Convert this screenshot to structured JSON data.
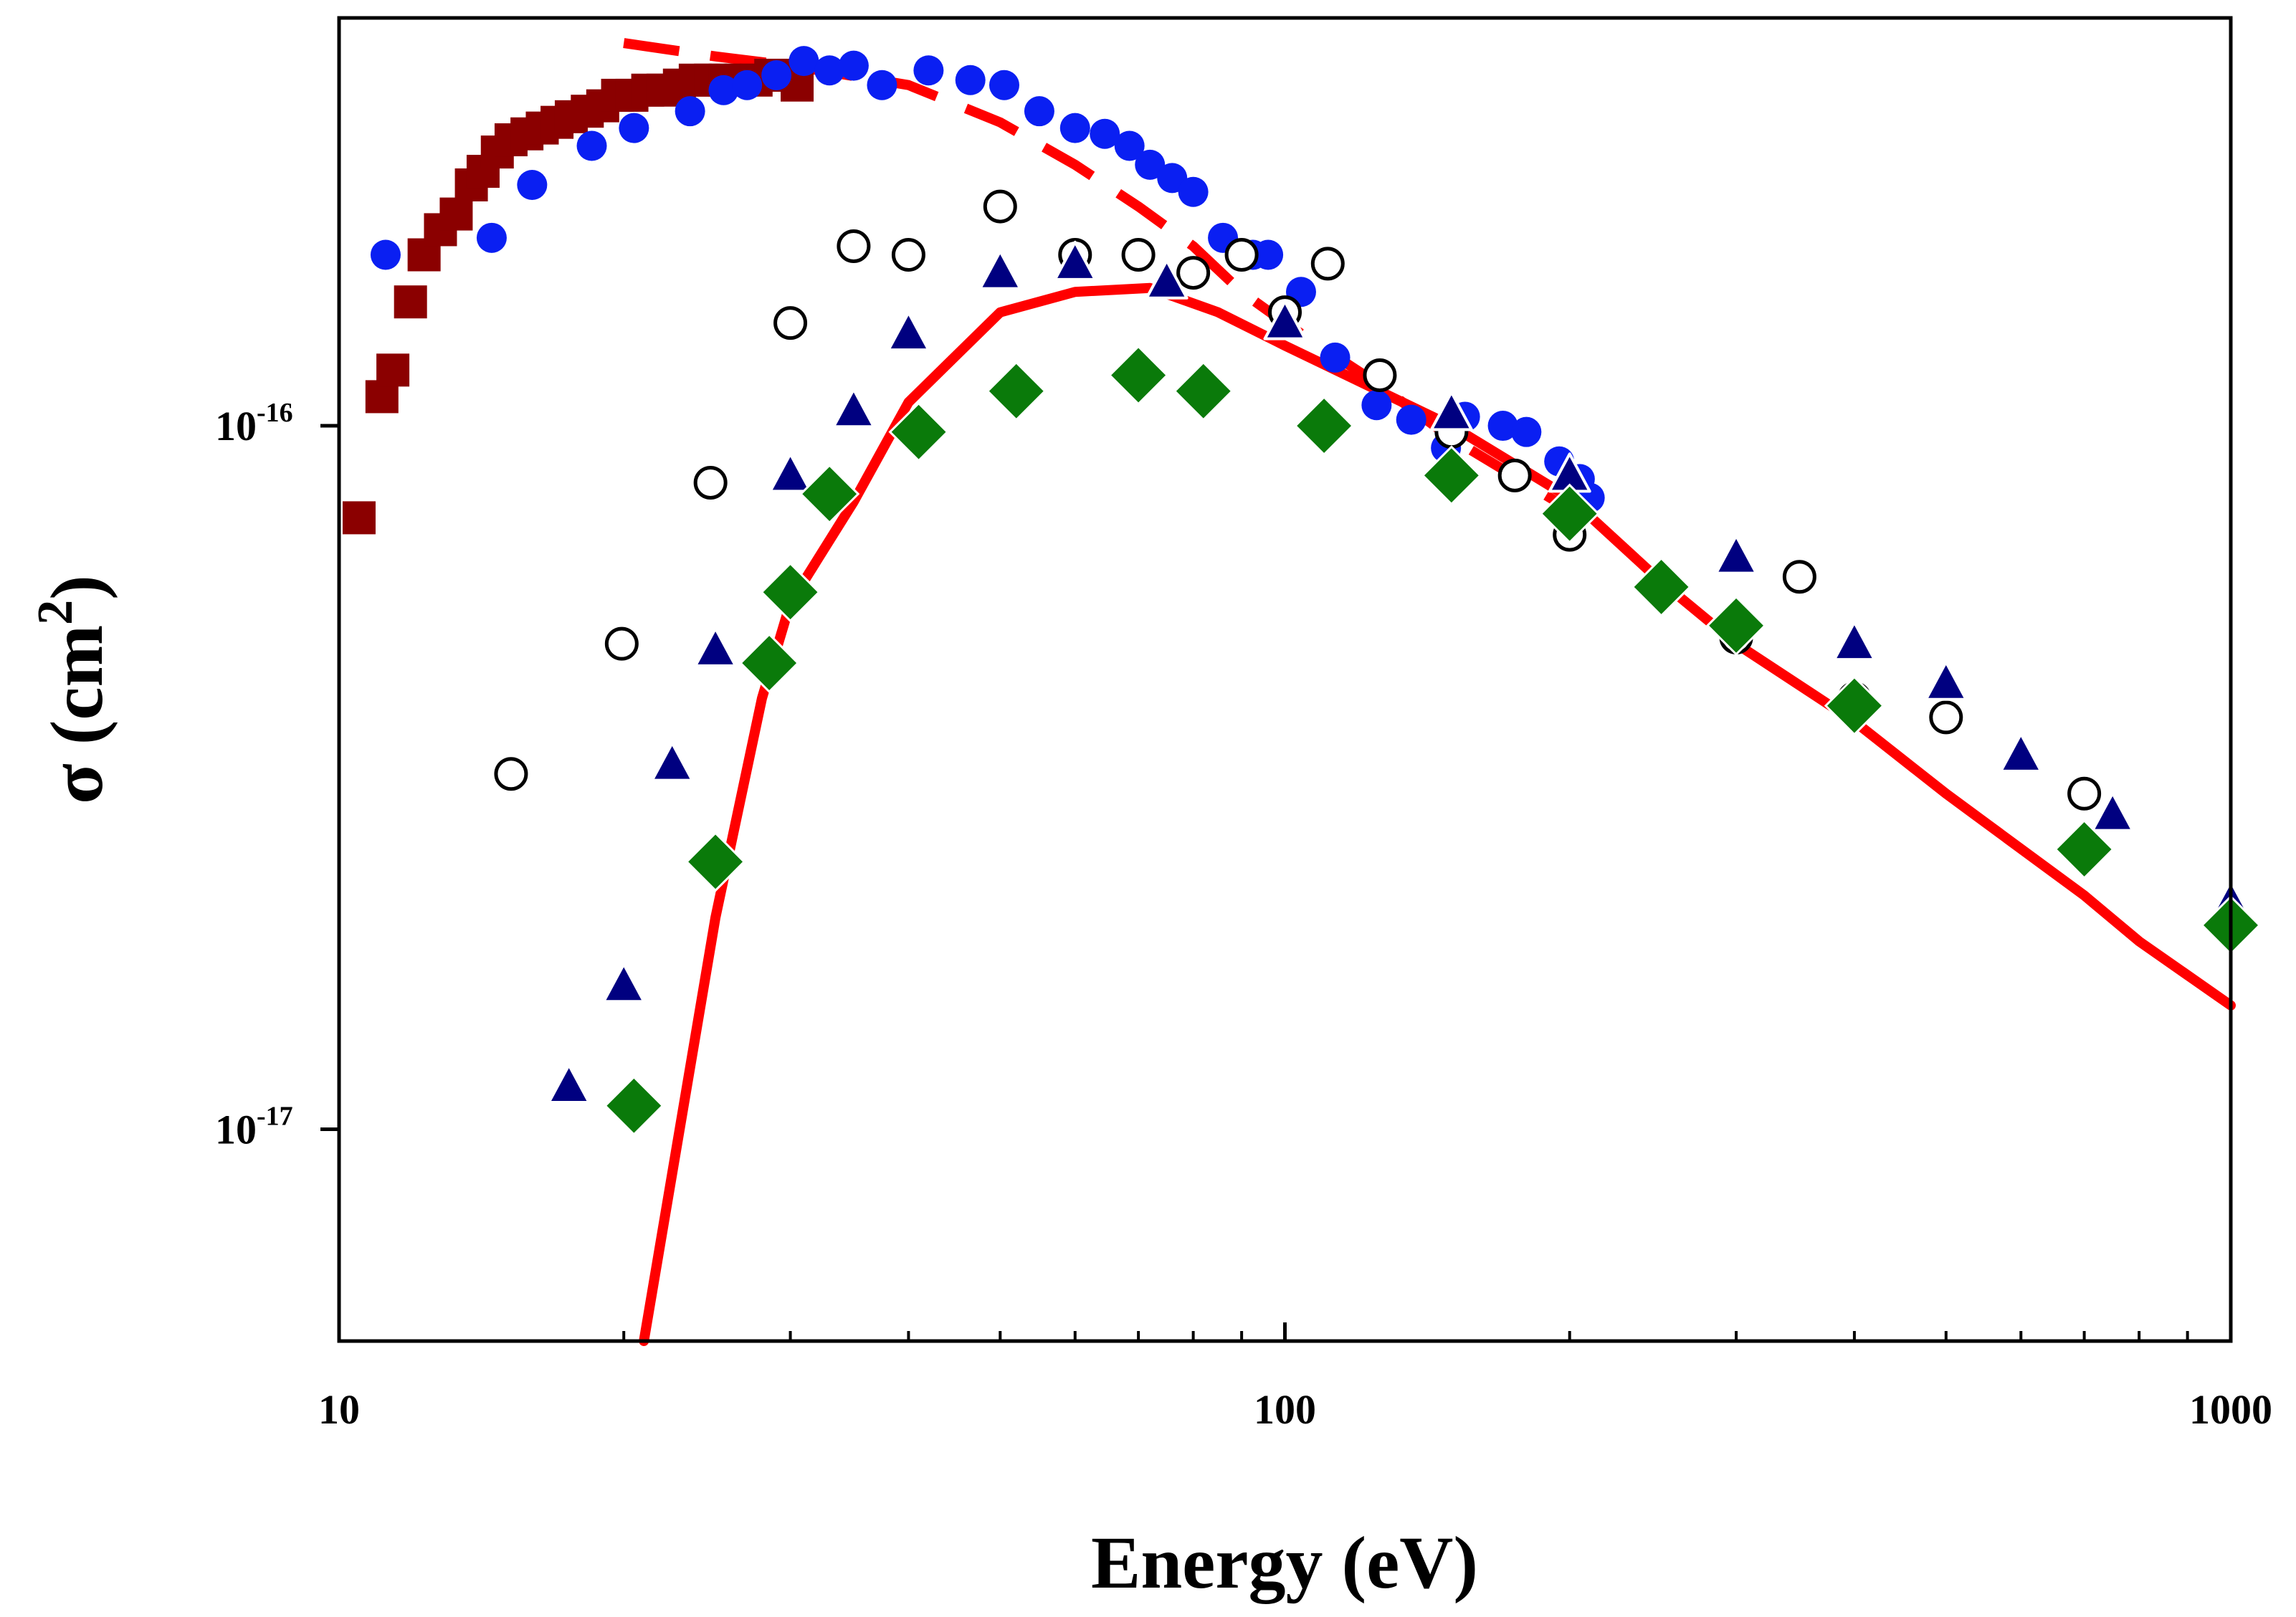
{
  "chart_data": {
    "type": "scatter",
    "title": "",
    "xlabel": "Energy (eV)",
    "ylabel": {
      "base": "σ (cm",
      "sup": "2",
      "end": ")"
    },
    "xscale": "log",
    "yscale": "log",
    "xlim": [
      10,
      1000
    ],
    "ylim": [
      5e-18,
      3.8e-16
    ],
    "grid": false,
    "legend": "none",
    "x_ticks": [
      {
        "value": 10,
        "label": "10"
      },
      {
        "value": 100,
        "label": "100"
      },
      {
        "value": 1000,
        "label": "1000"
      }
    ],
    "y_ticks": [
      {
        "value": 1e-16,
        "base": "10",
        "exp": "-16"
      },
      {
        "value": 1e-17,
        "base": "10",
        "exp": "-17"
      }
    ],
    "series": [
      {
        "marker": "square",
        "color": "#8b0000",
        "points": [
          [
            10.5,
            7.4e-17
          ],
          [
            11.1,
            1.1e-16
          ],
          [
            11.4,
            1.2e-16
          ],
          [
            11.9,
            1.5e-16
          ],
          [
            12.3,
            1.75e-16
          ],
          [
            12.8,
            1.9e-16
          ],
          [
            13.3,
            2e-16
          ],
          [
            13.8,
            2.2e-16
          ],
          [
            14.2,
            2.3e-16
          ],
          [
            14.7,
            2.45e-16
          ],
          [
            15.2,
            2.55e-16
          ],
          [
            15.8,
            2.6e-16
          ],
          [
            16.4,
            2.65e-16
          ],
          [
            17.0,
            2.7e-16
          ],
          [
            17.6,
            2.75e-16
          ],
          [
            18.3,
            2.8e-16
          ],
          [
            19.0,
            2.85e-16
          ],
          [
            19.7,
            2.95e-16
          ],
          [
            20.4,
            2.95e-16
          ],
          [
            21.2,
            3e-16
          ],
          [
            22.0,
            3e-16
          ],
          [
            22.9,
            3.05e-16
          ],
          [
            23.8,
            3.1e-16
          ],
          [
            24.7,
            3.1e-16
          ],
          [
            25.6,
            3.1e-16
          ],
          [
            26.6,
            3.1e-16
          ],
          [
            27.6,
            3.1e-16
          ],
          [
            28.6,
            3.15e-16
          ],
          [
            29.5,
            3.15e-16
          ],
          [
            30.5,
            3.05e-16
          ]
        ]
      },
      {
        "marker": "circle",
        "color": "#0a1ff2",
        "points": [
          [
            11.2,
            1.75e-16
          ],
          [
            14.5,
            1.85e-16
          ],
          [
            16.0,
            2.2e-16
          ],
          [
            18.5,
            2.5e-16
          ],
          [
            20.5,
            2.65e-16
          ],
          [
            23.5,
            2.8e-16
          ],
          [
            25.5,
            3e-16
          ],
          [
            27.0,
            3.05e-16
          ],
          [
            29.0,
            3.15e-16
          ],
          [
            31.0,
            3.3e-16
          ],
          [
            33.0,
            3.2e-16
          ],
          [
            35.0,
            3.25e-16
          ],
          [
            37.5,
            3.05e-16
          ],
          [
            42.0,
            3.2e-16
          ],
          [
            46.5,
            3.1e-16
          ],
          [
            50.5,
            3.05e-16
          ],
          [
            55.0,
            2.8e-16
          ],
          [
            60.0,
            2.65e-16
          ],
          [
            64.5,
            2.6e-16
          ],
          [
            68.5,
            2.5e-16
          ],
          [
            72.0,
            2.35e-16
          ],
          [
            76.0,
            2.25e-16
          ],
          [
            80.0,
            2.15e-16
          ],
          [
            86.0,
            1.85e-16
          ],
          [
            92.5,
            1.75e-16
          ],
          [
            96.0,
            1.75e-16
          ],
          [
            104.0,
            1.55e-16
          ],
          [
            113.0,
            1.25e-16
          ],
          [
            125.0,
            1.07e-16
          ],
          [
            136.0,
            1.02e-16
          ],
          [
            148.0,
            9.3e-17
          ],
          [
            155.0,
            1.03e-16
          ],
          [
            170.0,
            1e-16
          ],
          [
            180.0,
            9.8e-17
          ],
          [
            195.0,
            8.9e-17
          ],
          [
            205.0,
            8.4e-17
          ],
          [
            210.0,
            7.9e-17
          ]
        ]
      },
      {
        "marker": "open-circle",
        "color": "#000000",
        "points": [
          [
            15.2,
            3.2e-17
          ],
          [
            19.9,
            4.9e-17
          ],
          [
            24.7,
            8.3e-17
          ],
          [
            30.0,
            1.4e-16
          ],
          [
            35.0,
            1.8e-16
          ],
          [
            40.0,
            1.75e-16
          ],
          [
            50.0,
            2.05e-16
          ],
          [
            60.0,
            1.75e-16
          ],
          [
            70.0,
            1.75e-16
          ],
          [
            80.0,
            1.65e-16
          ],
          [
            90.0,
            1.75e-16
          ],
          [
            100.0,
            1.45e-16
          ],
          [
            111.0,
            1.7e-16
          ],
          [
            126.0,
            1.18e-16
          ],
          [
            150.0,
            9.8e-17
          ],
          [
            175.0,
            8.5e-17
          ],
          [
            200.0,
            7e-17
          ],
          [
            250.0,
            5.9e-17
          ],
          [
            300.0,
            5e-17
          ],
          [
            350.0,
            6.1e-17
          ],
          [
            400.0,
            4.1e-17
          ],
          [
            500.0,
            3.85e-17
          ],
          [
            700.0,
            3e-17
          ]
        ]
      },
      {
        "marker": "triangle",
        "color": "#000080",
        "points": [
          [
            17.5,
            1.15e-17
          ],
          [
            20.0,
            1.6e-17
          ],
          [
            22.5,
            3.3e-17
          ],
          [
            25.0,
            4.8e-17
          ],
          [
            30.0,
            8.5e-17
          ],
          [
            35.0,
            1.05e-16
          ],
          [
            40.0,
            1.35e-16
          ],
          [
            50.0,
            1.65e-16
          ],
          [
            60.0,
            1.7e-16
          ],
          [
            75.0,
            1.6e-16
          ],
          [
            100.0,
            1.4e-16
          ],
          [
            150.0,
            1.04e-16
          ],
          [
            200.0,
            8.5e-17
          ],
          [
            300.0,
            6.5e-17
          ],
          [
            400.0,
            4.9e-17
          ],
          [
            500.0,
            4.3e-17
          ],
          [
            600.0,
            3.4e-17
          ],
          [
            750.0,
            2.8e-17
          ],
          [
            1000.0,
            2.1e-17
          ]
        ]
      },
      {
        "marker": "diamond",
        "color": "#0a7a0a",
        "points": [
          [
            20.5,
            1.08e-17
          ],
          [
            25.0,
            2.4e-17
          ],
          [
            28.5,
            4.6e-17
          ],
          [
            30.0,
            5.8e-17
          ],
          [
            33.0,
            8e-17
          ],
          [
            41.0,
            9.8e-17
          ],
          [
            52.0,
            1.12e-16
          ],
          [
            70.0,
            1.18e-16
          ],
          [
            82.0,
            1.12e-16
          ],
          [
            110.0,
            1e-16
          ],
          [
            150.0,
            8.5e-17
          ],
          [
            200.0,
            7.5e-17
          ],
          [
            250.0,
            5.9e-17
          ],
          [
            300.0,
            5.2e-17
          ],
          [
            400.0,
            4e-17
          ],
          [
            700.0,
            2.5e-17
          ],
          [
            1000.0,
            1.95e-17
          ]
        ]
      },
      {
        "type": "line",
        "style": "solid",
        "color": "#ff0000",
        "points": [
          [
            21.0,
            5e-18
          ],
          [
            25.0,
            2e-17
          ],
          [
            28.0,
            4.1e-17
          ],
          [
            30.0,
            5.6e-17
          ],
          [
            35.0,
            7.8e-17
          ],
          [
            40.0,
            1.08e-16
          ],
          [
            50.0,
            1.45e-16
          ],
          [
            60.0,
            1.55e-16
          ],
          [
            72.0,
            1.57e-16
          ],
          [
            85.0,
            1.45e-16
          ],
          [
            100.0,
            1.3e-16
          ],
          [
            150.0,
            1e-16
          ],
          [
            200.0,
            7.9e-17
          ],
          [
            250.0,
            6e-17
          ],
          [
            300.0,
            4.9e-17
          ],
          [
            400.0,
            3.8e-17
          ],
          [
            500.0,
            3e-17
          ],
          [
            700.0,
            2.15e-17
          ],
          [
            800.0,
            1.85e-17
          ],
          [
            1000.0,
            1.5e-17
          ]
        ]
      },
      {
        "type": "line",
        "style": "dashed",
        "color": "#ff0000",
        "points": [
          [
            20.0,
            3.5e-16
          ],
          [
            25.0,
            3.35e-16
          ],
          [
            30.0,
            3.25e-16
          ],
          [
            40.0,
            3.05e-16
          ],
          [
            50.0,
            2.7e-16
          ],
          [
            60.0,
            2.35e-16
          ],
          [
            70.0,
            2.05e-16
          ],
          [
            80.0,
            1.8e-16
          ],
          [
            90.0,
            1.55e-16
          ],
          [
            100.0,
            1.4e-16
          ],
          [
            125.0,
            1.15e-16
          ],
          [
            150.0,
            9.6e-17
          ],
          [
            200.0,
            7.6e-17
          ]
        ]
      }
    ]
  }
}
